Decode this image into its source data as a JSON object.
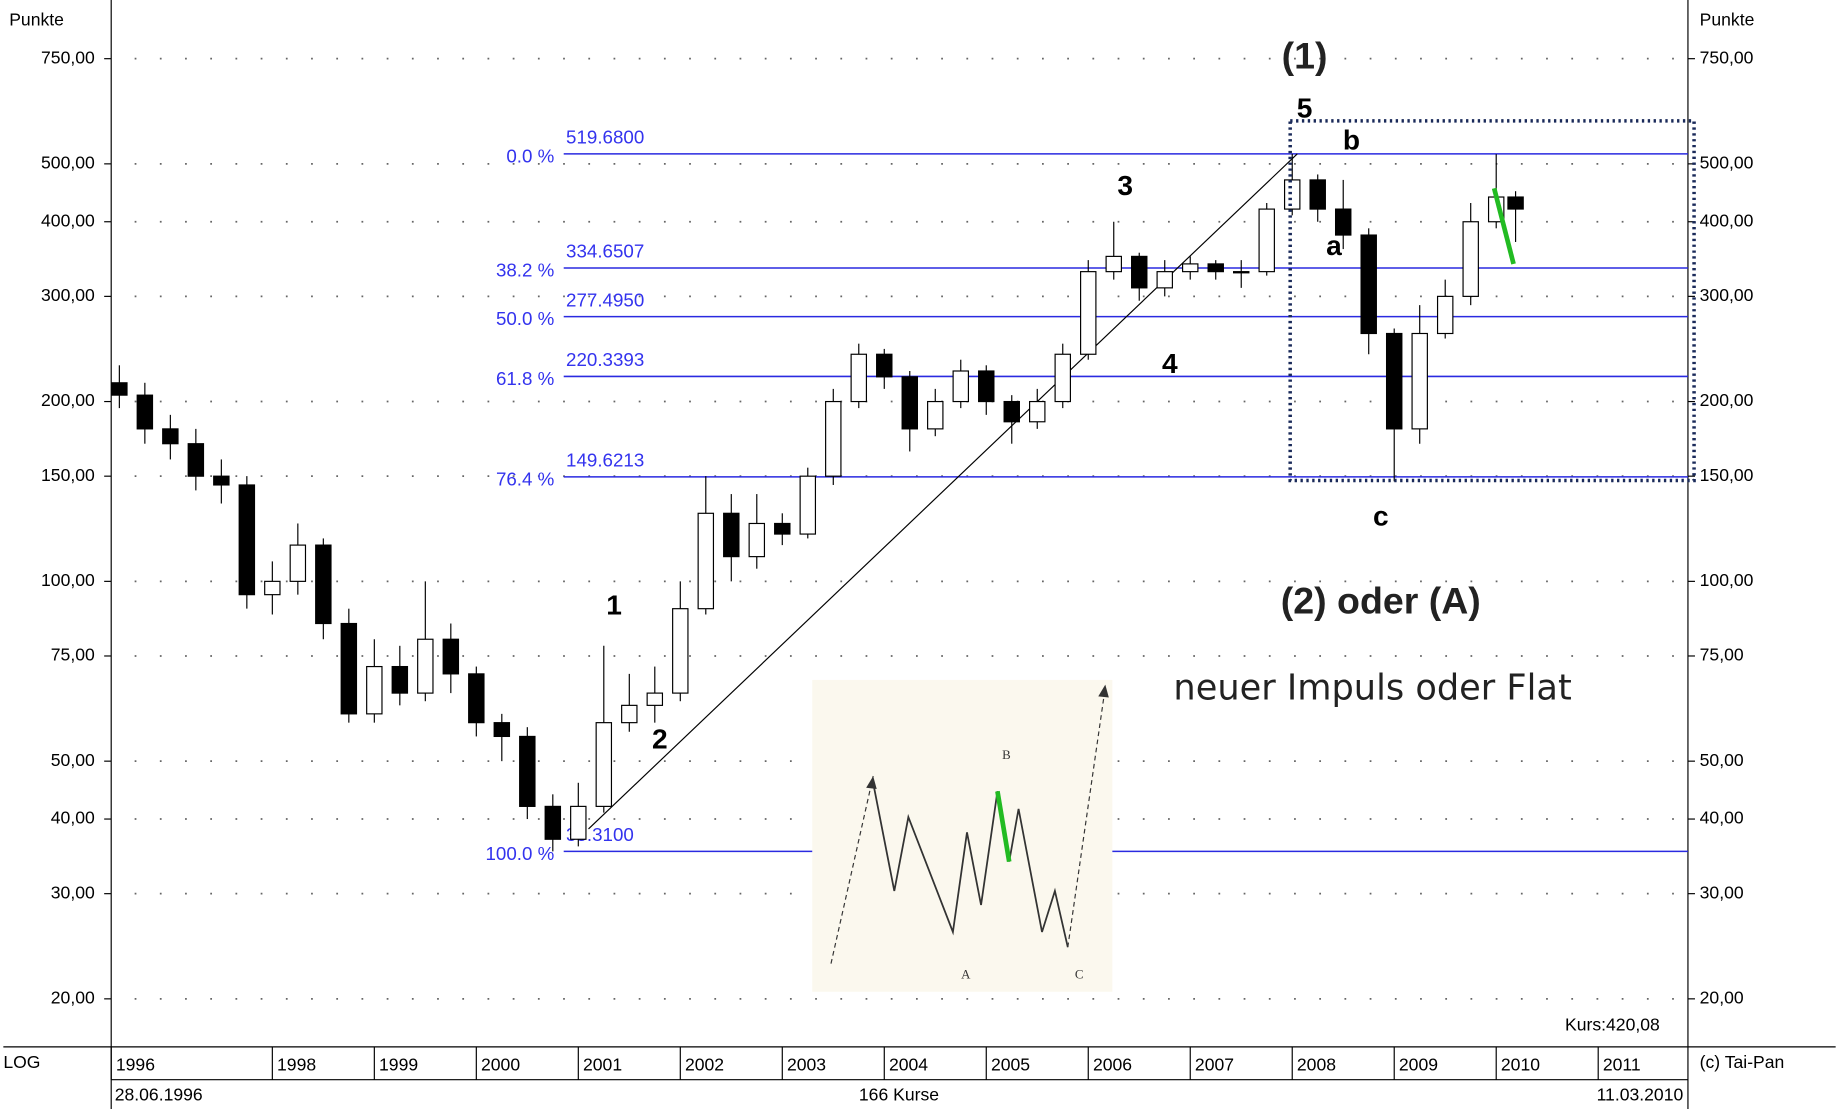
{
  "chart_data": {
    "type": "candlestick",
    "y_axis_label": "Punkte",
    "scale_label": "LOG",
    "copyright": "(c) Tai-Pan",
    "start_date": "28.06.1996",
    "count_label": "166 Kurse",
    "end_date": "11.03.2010",
    "last_price_label": "Kurs:420,08",
    "log_scale": true,
    "grid": true,
    "up_color": "#ffffff",
    "down_color": "#000000",
    "ylim": [
      17,
      907
    ],
    "yticks": [
      {
        "value": 20,
        "label": "20,00"
      },
      {
        "value": 30,
        "label": "30,00"
      },
      {
        "value": 40,
        "label": "40,00"
      },
      {
        "value": 50,
        "label": "50,00"
      },
      {
        "value": 75,
        "label": "75,00"
      },
      {
        "value": 100,
        "label": "100,00"
      },
      {
        "value": 150,
        "label": "150,00"
      },
      {
        "value": 200,
        "label": "200,00"
      },
      {
        "value": 300,
        "label": "300,00"
      },
      {
        "value": 400,
        "label": "400,00"
      },
      {
        "value": 500,
        "label": "500,00"
      },
      {
        "value": 750,
        "label": "750,00"
      }
    ],
    "xlim": [
      1996.42,
      2011.88
    ],
    "xticks": [
      {
        "value": 1996.42,
        "label": "1996"
      },
      1998,
      1999,
      2000,
      2001,
      2002,
      2003,
      2004,
      2005,
      2006,
      2007,
      2008,
      2009,
      2010,
      2011
    ],
    "x": [
      1996.5,
      1996.75,
      1997,
      1997.25,
      1997.5,
      1997.75,
      1998,
      1998.25,
      1998.5,
      1998.75,
      1999,
      1999.25,
      1999.5,
      1999.75,
      2000,
      2000.25,
      2000.5,
      2000.75,
      2001,
      2001.25,
      2001.5,
      2001.75,
      2002,
      2002.25,
      2002.5,
      2002.75,
      2003,
      2003.25,
      2003.5,
      2003.75,
      2004,
      2004.25,
      2004.5,
      2004.75,
      2005,
      2005.25,
      2005.5,
      2005.75,
      2006,
      2006.25,
      2006.5,
      2006.75,
      2007,
      2007.25,
      2007.5,
      2007.75,
      2008,
      2008.25,
      2008.5,
      2008.75,
      2009,
      2009.25,
      2009.5,
      2009.75,
      2010,
      2010.19
    ],
    "open": [
      215,
      205,
      180,
      170,
      150,
      145,
      95,
      100,
      115,
      85,
      60,
      72,
      65,
      80,
      70,
      58,
      55,
      42,
      37,
      42,
      58,
      62,
      65,
      90,
      130,
      110,
      125,
      120,
      150,
      200,
      240,
      220,
      180,
      200,
      225,
      200,
      185,
      200,
      240,
      330,
      350,
      310,
      330,
      340,
      330,
      330,
      420,
      470,
      420,
      380,
      260,
      180,
      260,
      300,
      400,
      440
    ],
    "high": [
      230,
      215,
      190,
      180,
      160,
      150,
      108,
      125,
      118,
      90,
      80,
      78,
      100,
      85,
      72,
      60,
      57,
      44,
      46,
      78,
      70,
      72,
      100,
      150,
      140,
      140,
      130,
      155,
      210,
      250,
      245,
      225,
      210,
      235,
      230,
      205,
      210,
      250,
      345,
      400,
      355,
      345,
      350,
      345,
      345,
      430,
      519.68,
      480,
      470,
      390,
      265,
      290,
      320,
      430,
      519,
      450
    ],
    "low": [
      195,
      170,
      160,
      142,
      135,
      90,
      88,
      95,
      80,
      58,
      58,
      62,
      63,
      65,
      55,
      50,
      40,
      35.31,
      36,
      41,
      56,
      58,
      63,
      88,
      100,
      105,
      115,
      118,
      145,
      195,
      210,
      165,
      175,
      195,
      190,
      170,
      180,
      195,
      235,
      320,
      295,
      300,
      320,
      320,
      310,
      325,
      410,
      400,
      360,
      240,
      147,
      170,
      255,
      290,
      390,
      370
    ],
    "close": [
      205,
      180,
      170,
      150,
      145,
      95,
      100,
      115,
      85,
      60,
      72,
      65,
      80,
      70,
      58,
      55,
      42,
      37,
      42,
      58,
      62,
      65,
      90,
      130,
      110,
      125,
      120,
      150,
      200,
      240,
      220,
      180,
      200,
      225,
      200,
      185,
      200,
      240,
      330,
      350,
      310,
      330,
      340,
      330,
      330,
      420,
      470,
      420,
      380,
      260,
      180,
      260,
      300,
      400,
      440,
      420.08
    ],
    "fib_color": "#2a2ae0",
    "fib_levels": [
      {
        "pct": "0.0 %",
        "value": 519.68,
        "label": "519.6800"
      },
      {
        "pct": "38.2 %",
        "value": 334.6507,
        "label": "334.6507"
      },
      {
        "pct": "50.0 %",
        "value": 277.495,
        "label": "277.4950"
      },
      {
        "pct": "61.8 %",
        "value": 220.3393,
        "label": "220.3393"
      },
      {
        "pct": "76.4 %",
        "value": 149.6213,
        "label": "149.6213"
      },
      {
        "pct": "100.0 %",
        "value": 35.31,
        "label": "35.3100"
      }
    ],
    "trendline": {
      "color": "#000000",
      "x": [
        2001.1,
        2008.05
      ],
      "y": [
        38.5,
        519.68
      ]
    },
    "highlight_line": {
      "color": "#22bb22",
      "x": [
        2009.98,
        2010.17
      ],
      "y": [
        455,
        340
      ]
    },
    "box": {
      "color": "#1a2a5a",
      "x": [
        2007.98,
        2011.94
      ],
      "y": [
        147.5,
        590
      ]
    },
    "annotations": [
      "(1)",
      "5",
      "b",
      "3",
      "a",
      "4",
      "c",
      "1",
      "2",
      "(2) oder (A)",
      "neuer Impuls oder Flat"
    ],
    "inset_labels": [
      "A",
      "B",
      "C"
    ]
  }
}
